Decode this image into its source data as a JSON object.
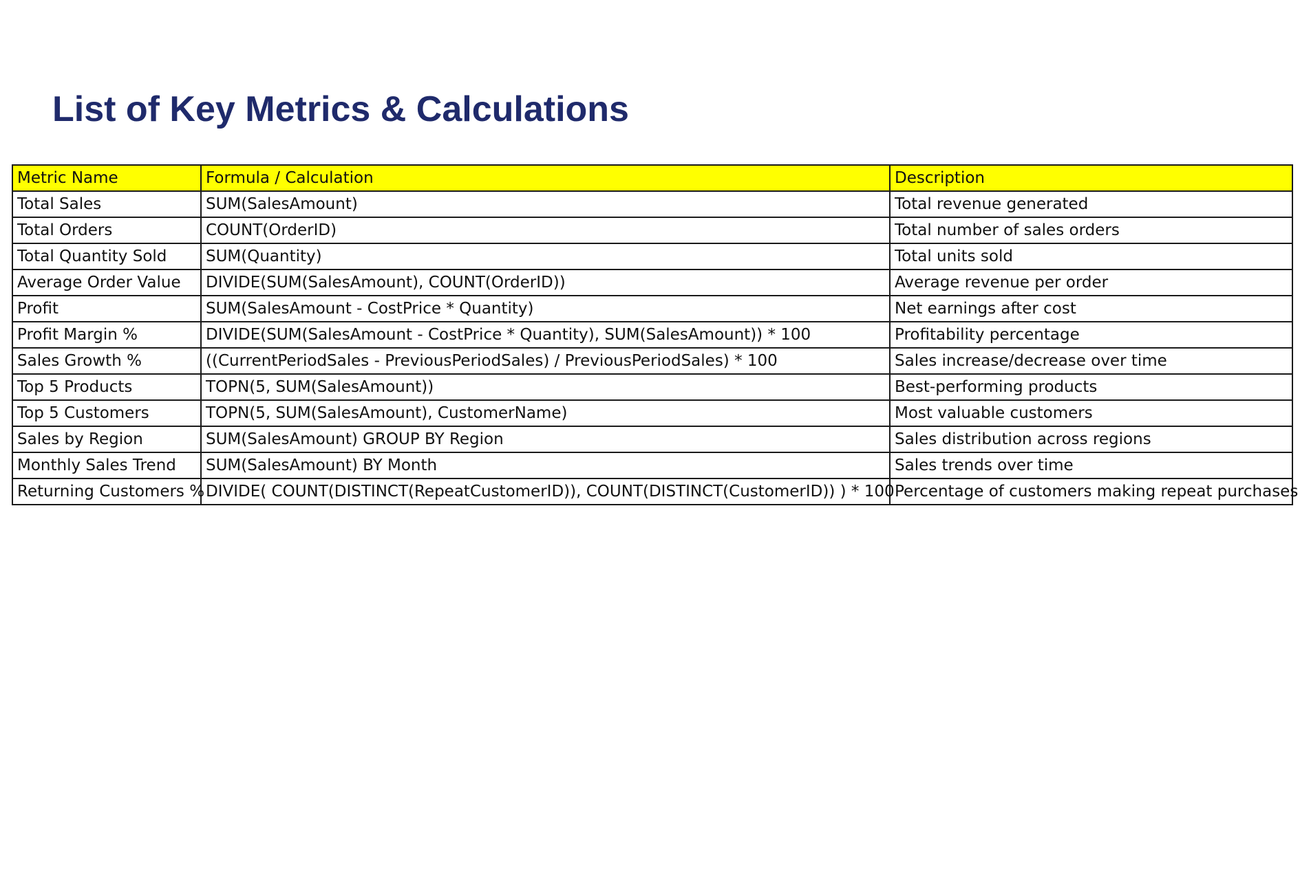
{
  "page": {
    "title": "List of Key Metrics & Calculations",
    "colors": {
      "title": "#1f2a6b",
      "header_fill": "#ffff00",
      "border": "#1a1a1a"
    }
  },
  "table": {
    "headers": [
      "Metric Name",
      "Formula / Calculation",
      "Description"
    ],
    "rows": [
      [
        "Total Sales",
        "SUM(SalesAmount)",
        "Total revenue generated"
      ],
      [
        "Total Orders",
        "COUNT(OrderID)",
        "Total number of sales orders"
      ],
      [
        "Total Quantity Sold",
        "SUM(Quantity)",
        "Total units sold"
      ],
      [
        "Average Order Value",
        "DIVIDE(SUM(SalesAmount), COUNT(OrderID))",
        "Average revenue per order"
      ],
      [
        "Profit",
        "SUM(SalesAmount - CostPrice * Quantity)",
        "Net earnings after cost"
      ],
      [
        "Profit Margin %",
        "DIVIDE(SUM(SalesAmount - CostPrice * Quantity), SUM(SalesAmount)) * 100",
        "Profitability percentage"
      ],
      [
        "Sales Growth %",
        "((CurrentPeriodSales - PreviousPeriodSales) / PreviousPeriodSales) * 100",
        "Sales increase/decrease over time"
      ],
      [
        "Top 5 Products",
        "TOPN(5, SUM(SalesAmount))",
        "Best-performing products"
      ],
      [
        "Top 5 Customers",
        "TOPN(5, SUM(SalesAmount), CustomerName)",
        "Most valuable customers"
      ],
      [
        "Sales by Region",
        "SUM(SalesAmount) GROUP BY Region",
        "Sales distribution across regions"
      ],
      [
        "Monthly Sales Trend",
        "SUM(SalesAmount) BY Month",
        "Sales trends over time"
      ],
      [
        "Returning Customers %",
        "DIVIDE( COUNT(DISTINCT(RepeatCustomerID)), COUNT(DISTINCT(CustomerID)) ) * 100",
        "Percentage of customers making repeat purchases"
      ]
    ]
  }
}
